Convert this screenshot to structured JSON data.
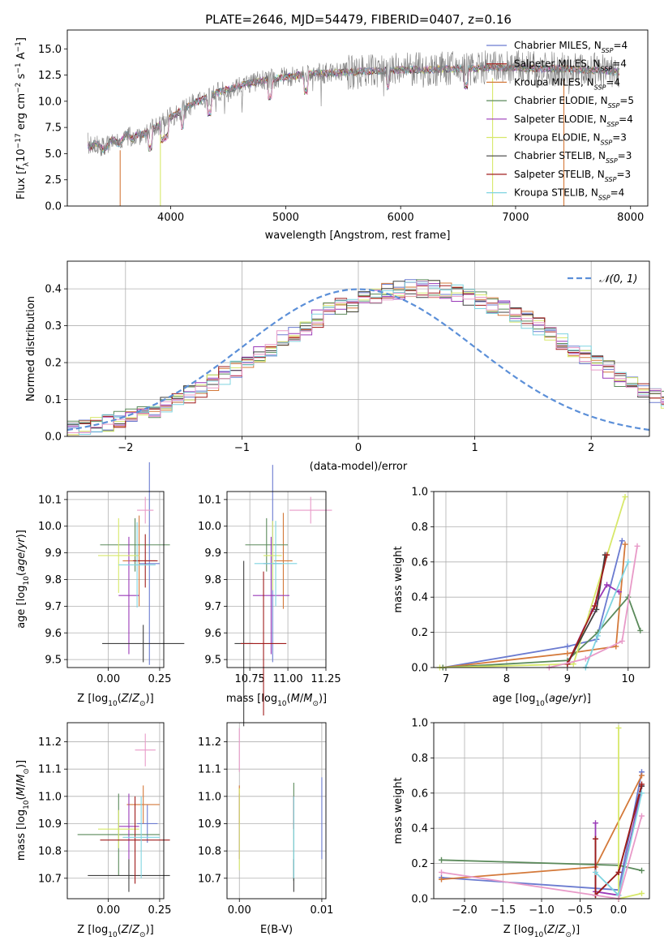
{
  "page_title": "PLATE=2646, MJD=54479, FIBERID=0407, z=0.16",
  "colors": {
    "model_colors": [
      "#6b7bd0",
      "#d4793a",
      "#5b8a5b",
      "#9a3ab8",
      "#d7e86a",
      "#404040",
      "#a01c1c",
      "#7fd4e0",
      "#e89ac8"
    ],
    "normal_curve": "#5b8fd8",
    "grid": "#b0b0b0",
    "data_line": "#7f7f7f"
  },
  "chart_data": [
    {
      "id": "spectrum",
      "type": "line",
      "title": "PLATE=2646, MJD=54479, FIBERID=0407, z=0.16",
      "xlabel": "wavelength [Angstrom, rest frame]",
      "ylabel": "Flux [f_λ 10^-17 erg cm^-2 s^-1 A^-1]",
      "xlim": [
        3100,
        8150
      ],
      "ylim": [
        0,
        16.8
      ],
      "xticks": [
        "4000",
        "5000",
        "6000",
        "7000",
        "8000"
      ],
      "yticks": [
        "0.0",
        "2.5",
        "5.0",
        "7.5",
        "10.0",
        "12.5",
        "15.0"
      ],
      "grid": false,
      "legend_position": "top-right",
      "observed_envelope": {
        "x": [
          3280,
          3400,
          3600,
          3800,
          4000,
          4200,
          4400,
          4600,
          4800,
          5000,
          5200,
          5400,
          5600,
          5800,
          6000,
          6200,
          6400,
          6600,
          6800,
          7000,
          7200,
          7400,
          7600,
          7800,
          7900
        ],
        "y": [
          6.0,
          5.6,
          6.5,
          7.0,
          8.5,
          9.8,
          10.8,
          11.5,
          12.0,
          12.3,
          12.6,
          12.7,
          12.8,
          12.9,
          13.0,
          13.0,
          13.1,
          13.1,
          13.2,
          13.2,
          13.1,
          13.1,
          13.0,
          12.9,
          12.8
        ]
      },
      "legend": [
        {
          "label": "Chabrier MILES, N",
          "sub": "SSP",
          "suffix": "=4"
        },
        {
          "label": "Salpeter MILES, N",
          "sub": "SSP",
          "suffix": "=4"
        },
        {
          "label": "Kroupa MILES, N",
          "sub": "SSP",
          "suffix": "=4"
        },
        {
          "label": "Chabrier ELODIE, N",
          "sub": "SSP",
          "suffix": "=5"
        },
        {
          "label": "Salpeter ELODIE, N",
          "sub": "SSP",
          "suffix": "=4"
        },
        {
          "label": "Kroupa ELODIE, N",
          "sub": "SSP",
          "suffix": "=3"
        },
        {
          "label": "Chabrier STELIB, N",
          "sub": "SSP",
          "suffix": "=3"
        },
        {
          "label": "Salpeter STELIB, N",
          "sub": "SSP",
          "suffix": "=3"
        },
        {
          "label": "Kroupa STELIB, N",
          "sub": "SSP",
          "suffix": "=4"
        }
      ],
      "legend_colors": [
        "#6b7bd0",
        "#a01c1c",
        "#d4793a",
        "#5b8a5b",
        "#9a3ab8",
        "#d7e86a",
        "#404040",
        "#a01c1c",
        "#7fd4e0"
      ]
    },
    {
      "id": "residuals",
      "type": "histogram",
      "xlabel": "(data-model)/error",
      "ylabel": "Normed distribution",
      "xlim": [
        -2.5,
        2.5
      ],
      "ylim": [
        0,
        0.475
      ],
      "xticks": [
        "−2",
        "−1",
        "0",
        "1",
        "2"
      ],
      "yticks": [
        "0.0",
        "0.1",
        "0.2",
        "0.3",
        "0.4"
      ],
      "grid": true,
      "legend_position": "top-right",
      "legend_label": "𝒩(0, 1)",
      "bin_width": 0.1,
      "base_density": [
        0.018,
        0.022,
        0.028,
        0.036,
        0.045,
        0.054,
        0.063,
        0.073,
        0.085,
        0.099,
        0.115,
        0.13,
        0.145,
        0.165,
        0.18,
        0.2,
        0.22,
        0.238,
        0.262,
        0.282,
        0.3,
        0.318,
        0.34,
        0.352,
        0.362,
        0.374,
        0.384,
        0.392,
        0.396,
        0.4,
        0.4,
        0.398,
        0.394,
        0.388,
        0.38,
        0.37,
        0.358,
        0.344,
        0.33,
        0.316,
        0.298,
        0.282,
        0.26,
        0.24,
        0.222,
        0.2,
        0.182,
        0.16,
        0.146,
        0.128,
        0.114,
        0.098,
        0.086,
        0.074,
        0.062,
        0.052,
        0.044,
        0.036,
        0.028,
        0.022
      ]
    },
    {
      "id": "age_vs_Z",
      "type": "errorbar",
      "xlabel": "Z [log10(Z/Z⊙)]",
      "ylabel": "age [log10(age/yr)]",
      "xlim": [
        -0.2,
        0.27
      ],
      "ylim": [
        9.47,
        10.13
      ],
      "xticks": [
        "0.00",
        "0.25"
      ],
      "yticks": [
        "9.5",
        "9.6",
        "9.7",
        "9.8",
        "9.9",
        "10.0",
        "10.1"
      ],
      "grid": true,
      "points": [
        {
          "x": 0.2,
          "xerr": 0.05,
          "y": 9.86,
          "yerr": 0.38
        },
        {
          "x": 0.15,
          "xerr": 0.08,
          "y": 9.87,
          "yerr": 0.17
        },
        {
          "x": 0.13,
          "xerr": 0.17,
          "y": 9.93,
          "yerr": 0.1
        },
        {
          "x": 0.1,
          "xerr": 0.05,
          "y": 9.74,
          "yerr": 0.22
        },
        {
          "x": 0.05,
          "xerr": 0.1,
          "y": 9.89,
          "yerr": 0.14
        },
        {
          "x": 0.17,
          "xerr": 0.2,
          "y": 9.56,
          "yerr": 0.07
        },
        {
          "x": 0.18,
          "xerr": 0.06,
          "y": 9.87,
          "yerr": 0.1
        },
        {
          "x": 0.14,
          "xerr": 0.09,
          "y": 9.855,
          "yerr": 0.16
        },
        {
          "x": 0.18,
          "xerr": 0.04,
          "y": 10.06,
          "yerr": 0.05
        }
      ]
    },
    {
      "id": "age_vs_mass",
      "type": "errorbar",
      "xlabel": "mass [log10(M/M⊙)]",
      "ylabel": "",
      "xlim": [
        10.6,
        11.25
      ],
      "ylim": [
        9.47,
        10.13
      ],
      "xticks": [
        "10.75",
        "11.00",
        "11.25"
      ],
      "yticks": [
        "9.5",
        "9.6",
        "9.7",
        "9.8",
        "9.9",
        "10.0",
        "10.1"
      ],
      "grid": true,
      "points": [
        {
          "x": 10.9,
          "xerr": 0.06,
          "y": 9.86,
          "yerr": 0.37
        },
        {
          "x": 10.97,
          "xerr": 0.06,
          "y": 9.87,
          "yerr": 0.18
        },
        {
          "x": 10.86,
          "xerr": 0.14,
          "y": 9.93,
          "yerr": 0.1
        },
        {
          "x": 10.89,
          "xerr": 0.12,
          "y": 9.74,
          "yerr": 0.22
        },
        {
          "x": 10.9,
          "xerr": 0.06,
          "y": 9.89,
          "yerr": 0.13
        },
        {
          "x": 10.71,
          "xerr": 0.06,
          "y": 9.56,
          "yerr": 0.31
        },
        {
          "x": 10.84,
          "xerr": 0.15,
          "y": 9.56,
          "yerr": 0.27
        },
        {
          "x": 10.92,
          "xerr": 0.14,
          "y": 9.86,
          "yerr": 0.16
        },
        {
          "x": 11.15,
          "xerr": 0.14,
          "y": 10.06,
          "yerr": 0.05
        }
      ]
    },
    {
      "id": "mass_weight_vs_age",
      "type": "line",
      "xlabel": "age [log10(age/yr)]",
      "ylabel": "mass weight",
      "xlim": [
        6.8,
        10.35
      ],
      "ylim": [
        0,
        1.0
      ],
      "xticks": [
        "7",
        "8",
        "9",
        "10"
      ],
      "yticks": [
        "0.0",
        "0.2",
        "0.4",
        "0.6",
        "0.8",
        "1.0"
      ],
      "grid": true,
      "series": [
        {
          "x": [
            6.95,
            9.0,
            9.48,
            9.9
          ],
          "y": [
            0.0,
            0.12,
            0.16,
            0.72
          ]
        },
        {
          "x": [
            6.95,
            9.0,
            9.8,
            9.95
          ],
          "y": [
            0.0,
            0.08,
            0.12,
            0.7
          ]
        },
        {
          "x": [
            6.95,
            9.0,
            9.5,
            10.0,
            10.2
          ],
          "y": [
            0.0,
            0.04,
            0.2,
            0.4,
            0.21
          ]
        },
        {
          "x": [
            9.0,
            9.4,
            9.65,
            9.85
          ],
          "y": [
            0.02,
            0.32,
            0.47,
            0.43
          ]
        },
        {
          "x": [
            6.9,
            9.1,
            9.95
          ],
          "y": [
            0.0,
            0.02,
            0.97
          ]
        },
        {
          "x": [
            9.0,
            9.48,
            9.62
          ],
          "y": [
            0.02,
            0.33,
            0.64
          ]
        },
        {
          "x": [
            9.0,
            9.45,
            9.65
          ],
          "y": [
            0.02,
            0.35,
            0.64
          ]
        },
        {
          "x": [
            9.3,
            9.5,
            10.0
          ],
          "y": [
            0.0,
            0.18,
            0.6
          ]
        },
        {
          "x": [
            8.7,
            9.3,
            9.9,
            10.15
          ],
          "y": [
            0.0,
            0.05,
            0.15,
            0.69
          ]
        }
      ]
    },
    {
      "id": "mass_vs_Z",
      "type": "errorbar",
      "xlabel": "Z [log10(Z/Z⊙)]",
      "ylabel": "mass [log10(M/M⊙)]",
      "xlim": [
        -0.2,
        0.27
      ],
      "ylim": [
        10.625,
        11.27
      ],
      "xticks": [
        "0.00",
        "0.25"
      ],
      "yticks": [
        "10.7",
        "10.8",
        "10.9",
        "11.0",
        "11.1",
        "11.2"
      ],
      "grid": true,
      "points": [
        {
          "x": 0.19,
          "xerr": 0.05,
          "y": 10.9,
          "yerr": 0.07
        },
        {
          "x": 0.17,
          "xerr": 0.08,
          "y": 10.97,
          "yerr": 0.07
        },
        {
          "x": 0.05,
          "xerr": 0.2,
          "y": 10.86,
          "yerr": 0.15
        },
        {
          "x": 0.1,
          "xerr": 0.05,
          "y": 10.89,
          "yerr": 0.12
        },
        {
          "x": 0.05,
          "xerr": 0.1,
          "y": 10.88,
          "yerr": 0.07
        },
        {
          "x": 0.1,
          "xerr": 0.2,
          "y": 10.71,
          "yerr": 0.06
        },
        {
          "x": 0.13,
          "xerr": 0.17,
          "y": 10.84,
          "yerr": 0.16
        },
        {
          "x": 0.16,
          "xerr": 0.09,
          "y": 10.85,
          "yerr": 0.15
        },
        {
          "x": 0.18,
          "xerr": 0.05,
          "y": 11.17,
          "yerr": 0.06
        }
      ]
    },
    {
      "id": "mass_vs_ebv",
      "type": "errorbar",
      "xlabel": "E(B-V)",
      "ylabel": "",
      "xlim": [
        -0.0015,
        0.0105
      ],
      "ylim": [
        10.625,
        11.27
      ],
      "xticks": [
        "0.00",
        "0.01"
      ],
      "yticks": [
        "10.7",
        "10.8",
        "10.9",
        "11.0",
        "11.1",
        "11.2"
      ],
      "grid": true,
      "points": [
        {
          "x": 0.01,
          "y": 10.92,
          "yerr": 0.15
        },
        {
          "x": 0.0,
          "y": 10.97,
          "yerr": 0.07
        },
        {
          "x": 0.0066,
          "y": 10.87,
          "yerr": 0.18
        },
        {
          "x": 0.0,
          "y": 10.89,
          "yerr": 0.12
        },
        {
          "x": 0.0,
          "y": 10.88,
          "yerr": 0.15
        },
        {
          "x": 0.0066,
          "y": 10.71,
          "yerr": 0.06
        },
        {
          "x": 0.0066,
          "y": 10.94,
          "yerr": 0.06
        },
        {
          "x": 0.0066,
          "y": 10.85,
          "yerr": 0.15
        },
        {
          "x": 0.0,
          "y": 11.17,
          "yerr": 0.08
        }
      ]
    },
    {
      "id": "mass_weight_vs_Z",
      "type": "line",
      "xlabel": "Z [log10(Z/Z⊙)]",
      "ylabel": "mass weight",
      "xlim": [
        -2.4,
        0.4
      ],
      "ylim": [
        0,
        1.0
      ],
      "xticks": [
        "−2.0",
        "−1.5",
        "−1.0",
        "−0.5",
        "0.0"
      ],
      "yticks": [
        "0.0",
        "0.2",
        "0.4",
        "0.6",
        "0.8",
        "1.0"
      ],
      "grid": true,
      "series": [
        {
          "x": [
            -2.3,
            0.0,
            0.3
          ],
          "y": [
            0.12,
            0.05,
            0.72
          ]
        },
        {
          "x": [
            -2.3,
            -0.3,
            0.3
          ],
          "y": [
            0.11,
            0.18,
            0.7
          ]
        },
        {
          "x": [
            -2.3,
            0.0,
            0.3
          ],
          "y": [
            0.22,
            0.19,
            0.16
          ]
        },
        {
          "x": [
            -0.3,
            -0.3,
            0.0,
            0.3
          ],
          "y": [
            0.43,
            0.04,
            0.02,
            0.64
          ]
        },
        {
          "x": [
            0.0,
            0.0,
            0.3
          ],
          "y": [
            0.97,
            0.0,
            0.03
          ]
        },
        {
          "x": [
            -0.3,
            -0.3,
            0.0,
            0.3
          ],
          "y": [
            0.34,
            0.02,
            0.15,
            0.64
          ]
        },
        {
          "x": [
            -0.3,
            -0.3,
            0.0,
            0.3
          ],
          "y": [
            0.34,
            0.02,
            0.15,
            0.65
          ]
        },
        {
          "x": [
            -0.3,
            0.0,
            0.3
          ],
          "y": [
            0.15,
            0.02,
            0.6
          ]
        },
        {
          "x": [
            -2.3,
            0.0,
            0.3
          ],
          "y": [
            0.15,
            0.0,
            0.47
          ]
        }
      ]
    }
  ]
}
